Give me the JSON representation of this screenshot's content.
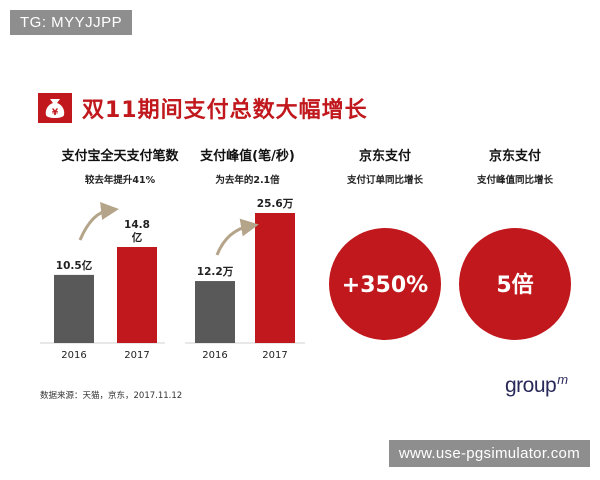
{
  "watermark_top": "TG: MYYJJPP",
  "watermark_bottom": "www.use-pgsimulator.com",
  "title": "双11期间支付总数大幅增长",
  "icon": "money-bag-yuan-icon",
  "colors": {
    "accent": "#c0181c",
    "bar_2016": "#595959",
    "bar_2017": "#c0181c",
    "arrow": "#b4a48a"
  },
  "columns": [
    {
      "heading": "支付宝全天支付笔数",
      "subheading": "较去年提升41%"
    },
    {
      "heading": "支付峰值(笔/秒)",
      "subheading": "为去年的2.1倍"
    },
    {
      "heading": "京东支付",
      "subheading": "支付订单同比增长"
    },
    {
      "heading": "京东支付",
      "subheading": "支付峰值同比增长"
    }
  ],
  "circles": [
    {
      "value": "+350%"
    },
    {
      "value": "5倍"
    }
  ],
  "source": "数据来源：天猫，京东，2017.11.12",
  "logo": {
    "text": "group",
    "sup": "m"
  },
  "chart_data": [
    {
      "type": "bar",
      "categories": [
        "2016",
        "2017"
      ],
      "values": [
        10.5,
        14.8
      ],
      "data_labels": [
        "10.5亿",
        "14.8\n亿"
      ]
    },
    {
      "type": "bar",
      "categories": [
        "2016",
        "2017"
      ],
      "values": [
        12.2,
        25.6
      ],
      "data_labels": [
        "12.2万",
        "25.6万"
      ]
    }
  ]
}
